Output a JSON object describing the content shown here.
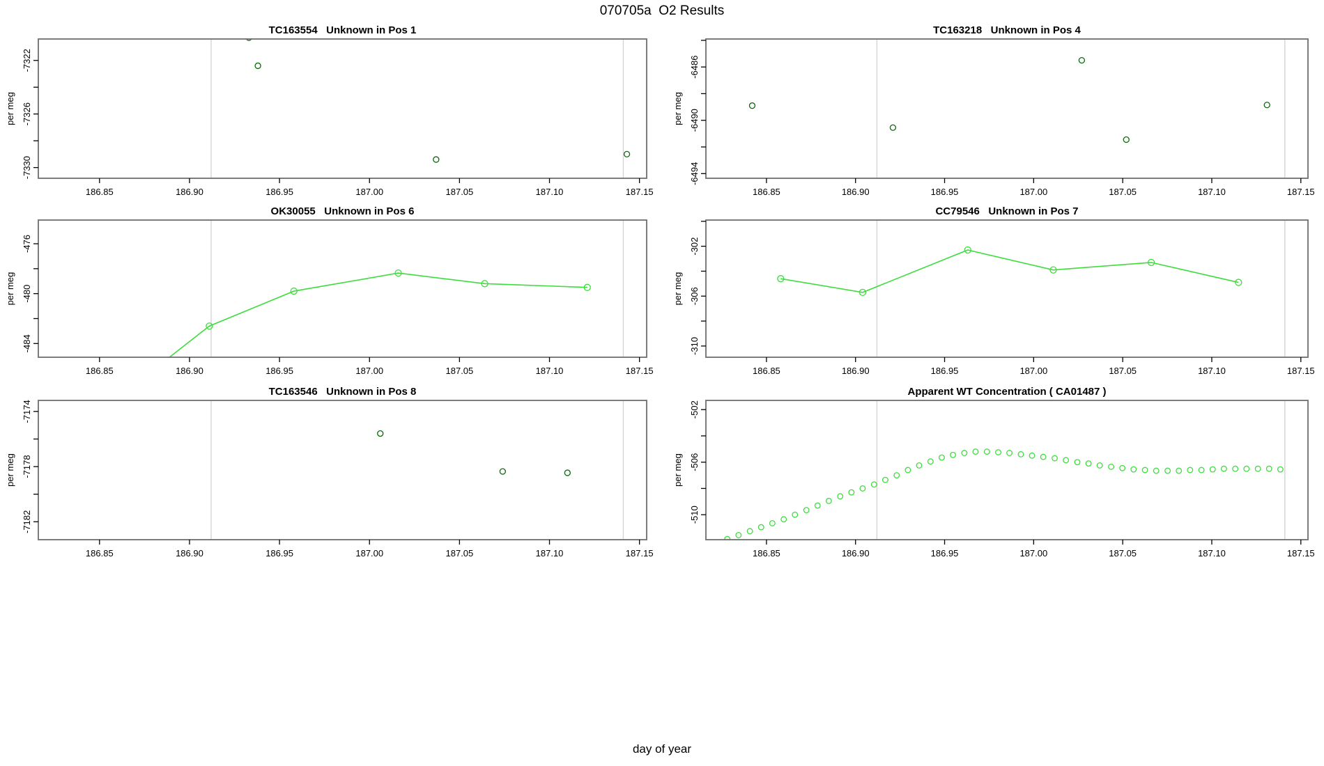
{
  "figure": {
    "main_title": "070705a  O2 Results",
    "xlabel": "day of year",
    "colors": {
      "dark_green": "#0a690a",
      "light_green": "#3ddd3d",
      "ref_line": "#d4d4d4",
      "box": "#6e6e6e",
      "text": "#000000"
    }
  },
  "chart_data": [
    {
      "title": "TC163554   Unknown in Pos 1",
      "ylabel": "per meg",
      "type": "scatter",
      "series_color": "dark_green",
      "position": {
        "row": 0,
        "col": 0
      },
      "xlim": [
        186.816,
        187.154
      ],
      "ylim": [
        -7330.8,
        -7320.4
      ],
      "xtick_values": [
        186.85,
        186.9,
        186.95,
        187.0,
        187.05,
        187.1,
        187.15
      ],
      "xtick_labels": [
        "186.85",
        "186.90",
        "186.95",
        "187.00",
        "187.05",
        "187.10",
        "187.15"
      ],
      "ytick_values": [
        -7322,
        -7324,
        -7326,
        -7328,
        -7330
      ],
      "ytick_labels": [
        "-7322",
        "",
        "-7326",
        "",
        "-7330"
      ],
      "ref_lines_x": [
        186.912,
        187.141
      ],
      "draw_line": false,
      "marker_radius": 4,
      "points": [
        [
          186.933,
          -7320.3
        ],
        [
          186.938,
          -7322.4
        ],
        [
          187.037,
          -7329.4
        ],
        [
          187.143,
          -7329.0
        ]
      ]
    },
    {
      "title": "TC163218   Unknown in Pos 4",
      "ylabel": "per meg",
      "type": "scatter",
      "series_color": "dark_green",
      "position": {
        "row": 0,
        "col": 1
      },
      "xlim": [
        186.816,
        187.154
      ],
      "ylim": [
        -6494.35,
        -6483.9
      ],
      "xtick_values": [
        186.85,
        186.9,
        186.95,
        187.0,
        187.05,
        187.1,
        187.15
      ],
      "xtick_labels": [
        "186.85",
        "186.90",
        "186.95",
        "187.00",
        "187.05",
        "187.10",
        "187.15"
      ],
      "ytick_values": [
        -6484,
        -6486,
        -6488,
        -6490,
        -6492,
        -6494
      ],
      "ytick_labels": [
        "",
        "-6486",
        "",
        "-6490",
        "",
        "-6494"
      ],
      "ref_lines_x": [
        186.912,
        187.141
      ],
      "draw_line": false,
      "marker_radius": 4,
      "points": [
        [
          186.842,
          -6488.9
        ],
        [
          186.921,
          -6490.55
        ],
        [
          187.027,
          -6485.5
        ],
        [
          187.052,
          -6491.45
        ],
        [
          187.131,
          -6488.85
        ]
      ]
    },
    {
      "title": "OK30055   Unknown in Pos 6",
      "ylabel": "per meg",
      "type": "line",
      "series_color": "light_green",
      "position": {
        "row": 1,
        "col": 0
      },
      "xlim": [
        186.816,
        187.154
      ],
      "ylim": [
        -485.1,
        -474.1
      ],
      "xtick_values": [
        186.85,
        186.9,
        186.95,
        187.0,
        187.05,
        187.1,
        187.15
      ],
      "xtick_labels": [
        "186.85",
        "186.90",
        "186.95",
        "187.00",
        "187.05",
        "187.10",
        "187.15"
      ],
      "ytick_values": [
        -476,
        -478,
        -480,
        -482,
        -484
      ],
      "ytick_labels": [
        "-476",
        "",
        "-480",
        "",
        "-484"
      ],
      "ref_lines_x": [
        186.912,
        187.141
      ],
      "draw_line": true,
      "marker_radius": 4.5,
      "line_points": [
        [
          186.872,
          -487.0
        ],
        [
          186.911,
          -482.6
        ],
        [
          186.958,
          -479.8
        ],
        [
          187.016,
          -478.35
        ],
        [
          187.064,
          -479.2
        ],
        [
          187.121,
          -479.5
        ]
      ],
      "points": [
        [
          186.911,
          -482.6
        ],
        [
          186.958,
          -479.8
        ],
        [
          187.016,
          -478.35
        ],
        [
          187.064,
          -479.2
        ],
        [
          187.121,
          -479.5
        ]
      ]
    },
    {
      "title": "CC79546   Unknown in Pos 7",
      "ylabel": "per meg",
      "type": "line",
      "series_color": "light_green",
      "position": {
        "row": 1,
        "col": 1
      },
      "xlim": [
        186.816,
        187.154
      ],
      "ylim": [
        -310.9,
        -299.9
      ],
      "xtick_values": [
        186.85,
        186.9,
        186.95,
        187.0,
        187.05,
        187.1,
        187.15
      ],
      "xtick_labels": [
        "186.85",
        "186.90",
        "186.95",
        "187.00",
        "187.05",
        "187.10",
        "187.15"
      ],
      "ytick_values": [
        -300,
        -302,
        -304,
        -306,
        -308,
        -310
      ],
      "ytick_labels": [
        "",
        "-302",
        "",
        "-306",
        "",
        "-310"
      ],
      "ref_lines_x": [
        186.912,
        187.141
      ],
      "draw_line": true,
      "marker_radius": 4.5,
      "points": [
        [
          186.858,
          -304.6
        ],
        [
          186.904,
          -305.7
        ],
        [
          186.963,
          -302.3
        ],
        [
          187.011,
          -303.9
        ],
        [
          187.066,
          -303.3
        ],
        [
          187.115,
          -304.9
        ]
      ]
    },
    {
      "title": "TC163546   Unknown in Pos 8",
      "ylabel": "per meg",
      "type": "scatter",
      "series_color": "dark_green",
      "position": {
        "row": 2,
        "col": 0
      },
      "xlim": [
        186.816,
        187.154
      ],
      "ylim": [
        -7183.3,
        -7173.2
      ],
      "xtick_values": [
        186.85,
        186.9,
        186.95,
        187.0,
        187.05,
        187.1,
        187.15
      ],
      "xtick_labels": [
        "186.85",
        "186.90",
        "186.95",
        "187.00",
        "187.05",
        "187.10",
        "187.15"
      ],
      "ytick_values": [
        -7174,
        -7176,
        -7178,
        -7180,
        -7182
      ],
      "ytick_labels": [
        "-7174",
        "",
        "-7178",
        "",
        "-7182"
      ],
      "ref_lines_x": [
        186.912,
        187.141
      ],
      "draw_line": false,
      "marker_radius": 4,
      "points": [
        [
          187.006,
          -7175.6
        ],
        [
          187.074,
          -7178.35
        ],
        [
          187.11,
          -7178.45
        ]
      ]
    },
    {
      "title": "Apparent WT Concentration ( CA01487 )",
      "ylabel": "per meg",
      "type": "scatter",
      "series_color": "light_green",
      "position": {
        "row": 2,
        "col": 1
      },
      "xlim": [
        186.816,
        187.154
      ],
      "ylim": [
        -511.9,
        -501.3
      ],
      "xtick_values": [
        186.85,
        186.9,
        186.95,
        187.0,
        187.05,
        187.1,
        187.15
      ],
      "xtick_labels": [
        "186.85",
        "186.90",
        "186.95",
        "187.00",
        "187.05",
        "187.10",
        "187.15"
      ],
      "ytick_values": [
        -502,
        -504,
        -506,
        -508,
        -510
      ],
      "ytick_labels": [
        "-502",
        "",
        "-506",
        "",
        "-510"
      ],
      "ref_lines_x": [
        186.912,
        187.141
      ],
      "draw_line": false,
      "marker_radius": 3.8,
      "points": [
        [
          186.828,
          -511.85
        ],
        [
          186.8343,
          -511.55
        ],
        [
          186.8407,
          -511.25
        ],
        [
          186.847,
          -510.95
        ],
        [
          186.8533,
          -510.65
        ],
        [
          186.8597,
          -510.35
        ],
        [
          186.866,
          -510.0
        ],
        [
          186.8724,
          -509.65
        ],
        [
          186.8787,
          -509.3
        ],
        [
          186.885,
          -508.95
        ],
        [
          186.8914,
          -508.6
        ],
        [
          186.8977,
          -508.3
        ],
        [
          186.904,
          -508.0
        ],
        [
          186.9104,
          -507.7
        ],
        [
          186.9167,
          -507.35
        ],
        [
          186.9231,
          -507.0
        ],
        [
          186.9294,
          -506.6
        ],
        [
          186.9357,
          -506.25
        ],
        [
          186.9421,
          -505.95
        ],
        [
          186.9484,
          -505.65
        ],
        [
          186.9547,
          -505.45
        ],
        [
          186.9611,
          -505.3
        ],
        [
          186.9674,
          -505.2
        ],
        [
          186.9738,
          -505.2
        ],
        [
          186.9801,
          -505.25
        ],
        [
          186.9864,
          -505.3
        ],
        [
          186.9928,
          -505.4
        ],
        [
          186.9991,
          -505.5
        ],
        [
          187.0054,
          -505.6
        ],
        [
          187.0118,
          -505.7
        ],
        [
          187.0181,
          -505.85
        ],
        [
          187.0245,
          -506.0
        ],
        [
          187.0308,
          -506.1
        ],
        [
          187.0371,
          -506.25
        ],
        [
          187.0435,
          -506.35
        ],
        [
          187.0498,
          -506.45
        ],
        [
          187.0561,
          -506.55
        ],
        [
          187.0625,
          -506.6
        ],
        [
          187.0688,
          -506.65
        ],
        [
          187.0752,
          -506.65
        ],
        [
          187.0815,
          -506.65
        ],
        [
          187.0878,
          -506.6
        ],
        [
          187.0942,
          -506.6
        ],
        [
          187.1005,
          -506.55
        ],
        [
          187.1068,
          -506.5
        ],
        [
          187.1132,
          -506.5
        ],
        [
          187.1195,
          -506.5
        ],
        [
          187.1259,
          -506.5
        ],
        [
          187.1322,
          -506.5
        ],
        [
          187.1385,
          -506.55
        ]
      ]
    }
  ]
}
